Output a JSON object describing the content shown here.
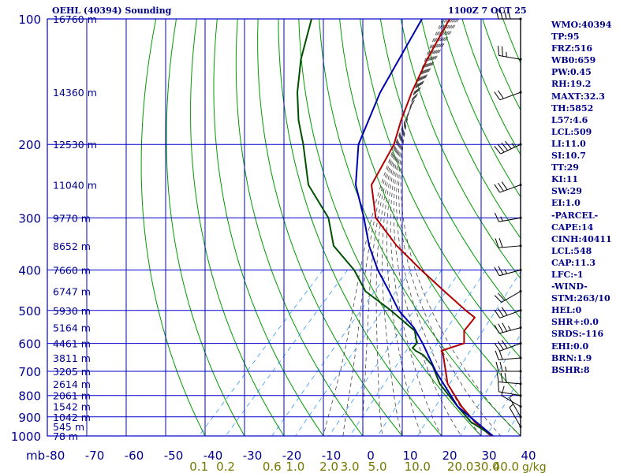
{
  "chart_data": {
    "type": "skew-t",
    "title": "OEHL (40394) Sounding",
    "datetime": "1100Z  7 OCT 25",
    "pressure_axis_unit": "mb",
    "pressure_levels": [
      100,
      200,
      300,
      400,
      500,
      600,
      700,
      800,
      900,
      1000
    ],
    "temp_axis_ticks": [
      "-80",
      "-70",
      "-60",
      "-50",
      "-40",
      "-30",
      "-20",
      "-10",
      "0",
      "10",
      "20",
      "30",
      "40"
    ],
    "temp_axis_range": [
      -80,
      40
    ],
    "mixing_ratio_labels": [
      "0.1",
      "0.2",
      "0.6",
      "1.0",
      "2.0",
      "3.0",
      "5.0",
      "10.0",
      "20.0",
      "30.0",
      "40.0"
    ],
    "mixing_ratio_unit": "g/kg",
    "height_labels": [
      {
        "p": 100,
        "h": "16760 m"
      },
      {
        "p": 150,
        "h": "14360 m"
      },
      {
        "p": 200,
        "h": "12530 m"
      },
      {
        "p": 250,
        "h": "11040 m"
      },
      {
        "p": 300,
        "h": "9770 m"
      },
      {
        "p": 350,
        "h": "8652 m"
      },
      {
        "p": 400,
        "h": "7660 m"
      },
      {
        "p": 450,
        "h": "6747 m"
      },
      {
        "p": 500,
        "h": "5930 m"
      },
      {
        "p": 550,
        "h": "5164 m"
      },
      {
        "p": 600,
        "h": "4461 m"
      },
      {
        "p": 650,
        "h": "3811 m"
      },
      {
        "p": 700,
        "h": "3205 m"
      },
      {
        "p": 750,
        "h": "2614 m"
      },
      {
        "p": 800,
        "h": "2061 m"
      },
      {
        "p": 850,
        "h": "1542 m"
      },
      {
        "p": 900,
        "h": "1042 m"
      },
      {
        "p": 950,
        "h": "545 m"
      },
      {
        "p": 1000,
        "h": "78 m"
      }
    ],
    "series": [
      {
        "name": "temperature",
        "color": "#b00000",
        "points": [
          [
            1000,
            32.5
          ],
          [
            925,
            25
          ],
          [
            850,
            18
          ],
          [
            750,
            9
          ],
          [
            640,
            1
          ],
          [
            625,
            -0.5
          ],
          [
            615,
            1
          ],
          [
            600,
            3.5
          ],
          [
            560,
            0.5
          ],
          [
            520,
            0
          ],
          [
            500,
            -4
          ],
          [
            450,
            -14
          ],
          [
            400,
            -25
          ],
          [
            350,
            -37
          ],
          [
            300,
            -49
          ],
          [
            250,
            -58
          ],
          [
            200,
            -62
          ],
          [
            175,
            -66
          ],
          [
            150,
            -70
          ],
          [
            125,
            -74
          ],
          [
            100,
            -78
          ]
        ]
      },
      {
        "name": "dewpoint",
        "color": "#005000",
        "points": [
          [
            1000,
            33
          ],
          [
            925,
            24
          ],
          [
            850,
            17
          ],
          [
            750,
            7
          ],
          [
            680,
            1
          ],
          [
            640,
            -4
          ],
          [
            625,
            -7
          ],
          [
            615,
            -8.5
          ],
          [
            600,
            -8.5
          ],
          [
            560,
            -12
          ],
          [
            500,
            -23
          ],
          [
            450,
            -34
          ],
          [
            400,
            -42
          ],
          [
            350,
            -53
          ],
          [
            300,
            -61
          ],
          [
            250,
            -74
          ],
          [
            200,
            -85
          ],
          [
            175,
            -92
          ],
          [
            150,
            -99
          ],
          [
            125,
            -106
          ],
          [
            100,
            -113
          ]
        ]
      },
      {
        "name": "parcel",
        "color": "#0000aa",
        "points": [
          [
            1000,
            33
          ],
          [
            850,
            17
          ],
          [
            700,
            3
          ],
          [
            600,
            -7
          ],
          [
            550,
            -13
          ],
          [
            500,
            -21
          ],
          [
            450,
            -28
          ],
          [
            400,
            -36
          ],
          [
            350,
            -44
          ],
          [
            300,
            -52
          ],
          [
            250,
            -62
          ],
          [
            200,
            -71
          ],
          [
            150,
            -78
          ],
          [
            100,
            -85
          ]
        ]
      }
    ],
    "wind_barbs": [
      {
        "p": 100,
        "dir": 270,
        "spd": 40
      },
      {
        "p": 125,
        "dir": 280,
        "spd": 25
      },
      {
        "p": 150,
        "dir": 250,
        "spd": 20
      },
      {
        "p": 200,
        "dir": 245,
        "spd": 45
      },
      {
        "p": 250,
        "dir": 250,
        "spd": 30
      },
      {
        "p": 300,
        "dir": 260,
        "spd": 15
      },
      {
        "p": 350,
        "dir": 265,
        "spd": 20
      },
      {
        "p": 400,
        "dir": 255,
        "spd": 25
      },
      {
        "p": 450,
        "dir": 240,
        "spd": 20
      },
      {
        "p": 500,
        "dir": 250,
        "spd": 30
      },
      {
        "p": 550,
        "dir": 255,
        "spd": 35
      },
      {
        "p": 600,
        "dir": 250,
        "spd": 30
      },
      {
        "p": 650,
        "dir": 265,
        "spd": 20
      },
      {
        "p": 700,
        "dir": 270,
        "spd": 25
      },
      {
        "p": 750,
        "dir": 275,
        "spd": 30
      },
      {
        "p": 800,
        "dir": 280,
        "spd": 10
      },
      {
        "p": 850,
        "dir": 300,
        "spd": 10
      },
      {
        "p": 900,
        "dir": 330,
        "spd": 5
      },
      {
        "p": 950,
        "dir": 330,
        "spd": 5
      }
    ]
  },
  "stats": [
    "WMO:40394",
    "TP:95",
    "FRZ:516",
    "WB0:659",
    "PW:0.45",
    "RH:19.2",
    "MAXT:32.3",
    "TH:5852",
    "L57:4.6",
    "LCL:509",
    "LI:11.0",
    "SI:10.7",
    "TT:29",
    "KI:11",
    "SW:29",
    "EI:1.0",
    "-PARCEL-",
    "CAPE:14",
    "CINH:40411",
    "LCL:548",
    "CAP:11.3",
    "LFC:-1",
    "-WIND-",
    "STM:263/10",
    "HEL:0",
    "SHR+:0.0",
    "SRDS:-116",
    "EHI:0.0",
    "BRN:1.9",
    "BSHR:8"
  ],
  "colors": {
    "grid": "#0000cc",
    "dry_adiabat": "#009900",
    "moist_adiabat": "#444444",
    "mixing_ratio": "#3399ff",
    "axis_label": "#00008b",
    "mixing_label": "#777700"
  }
}
